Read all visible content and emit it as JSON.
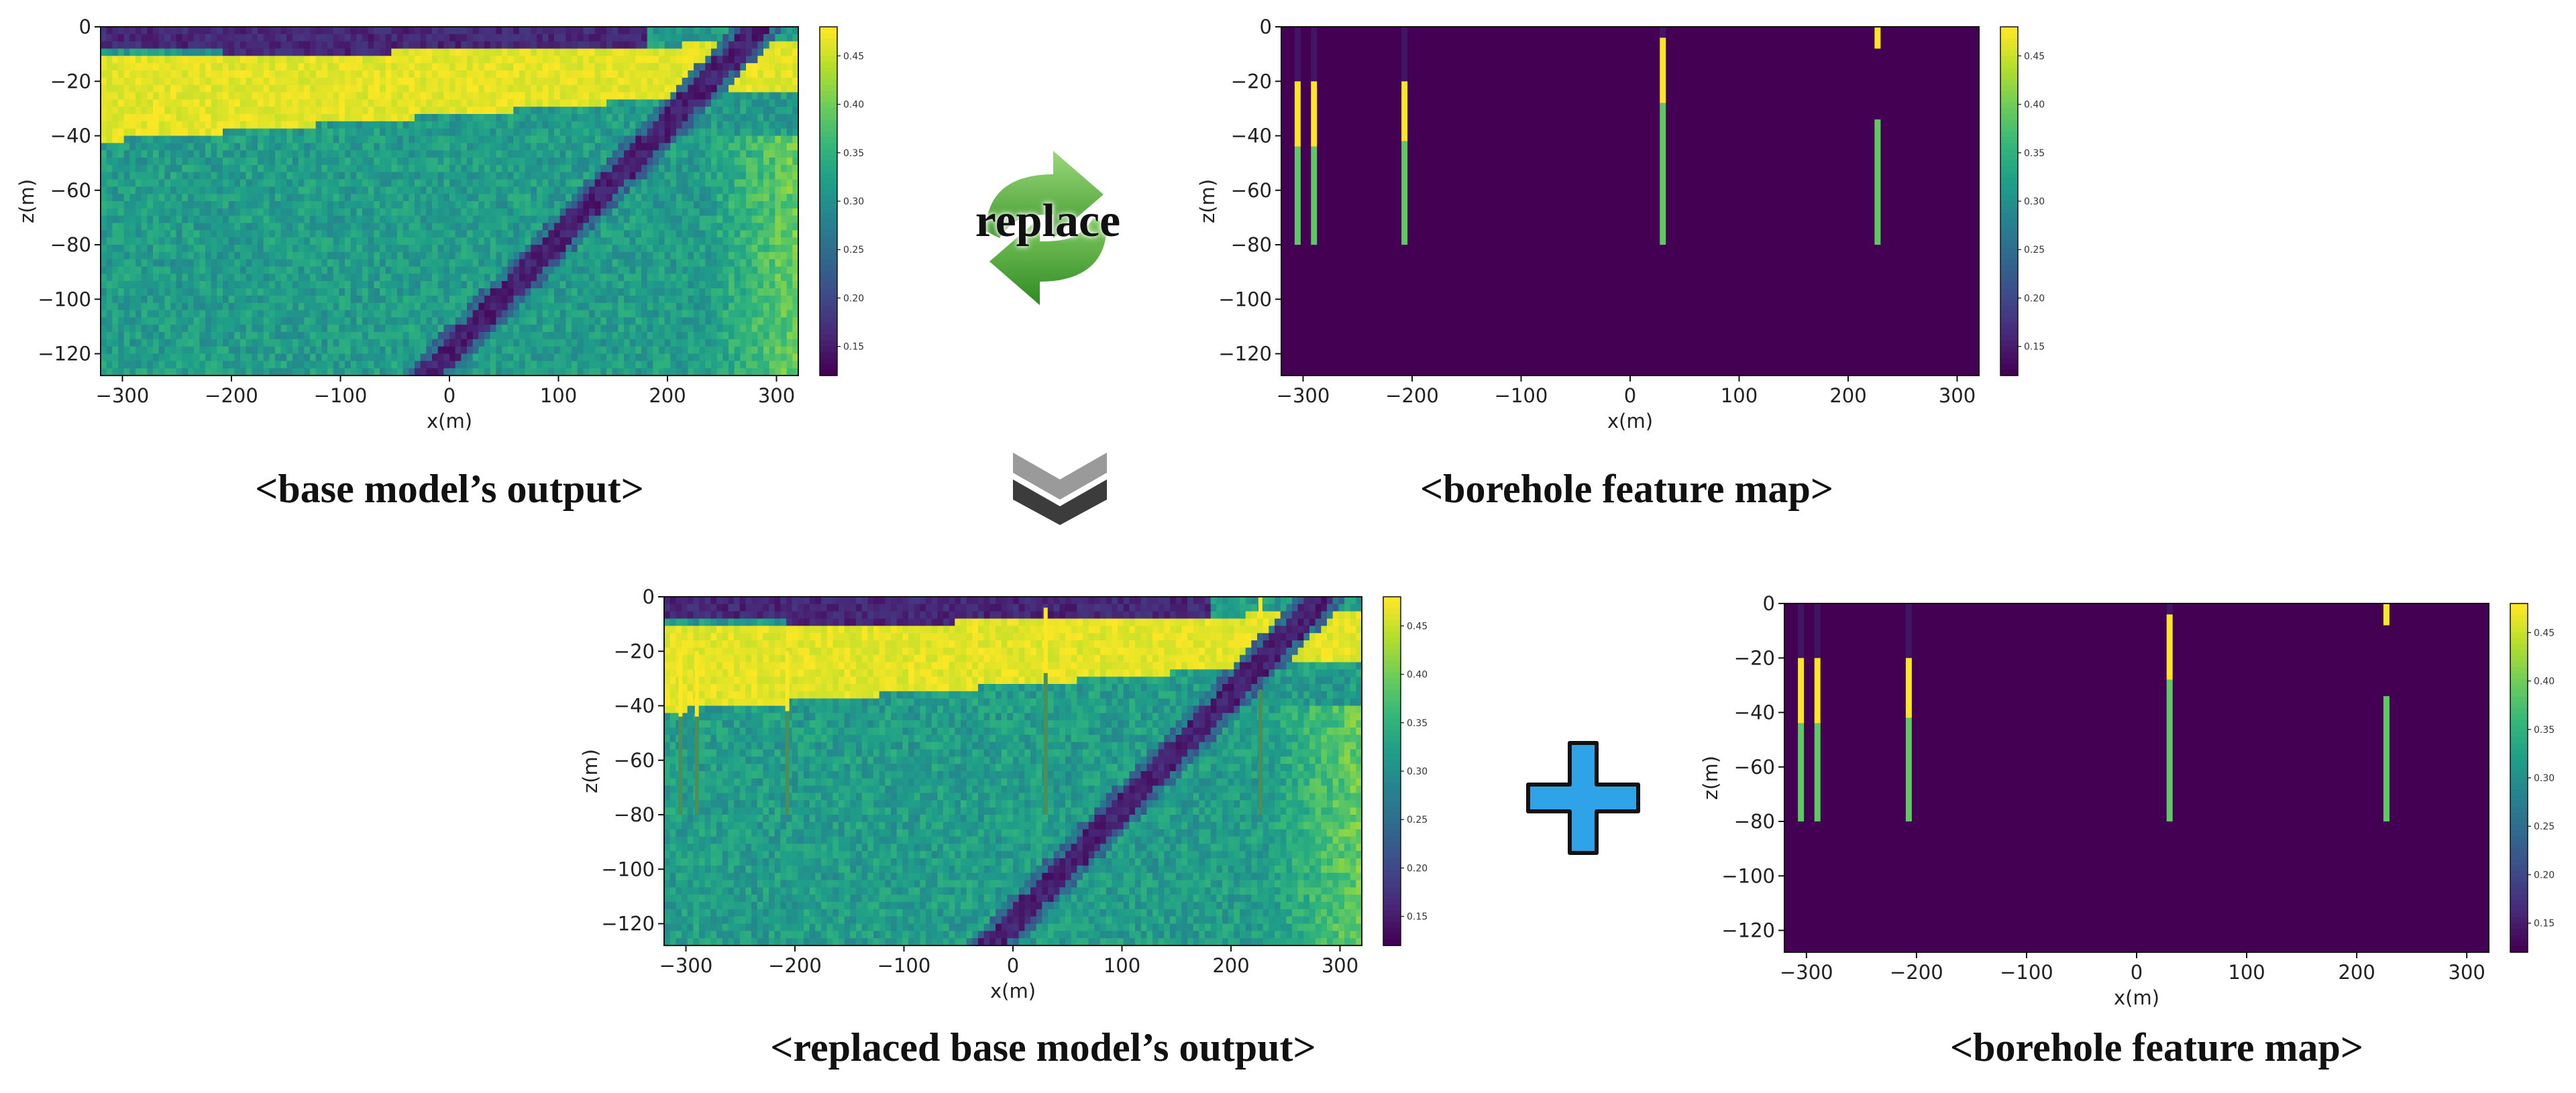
{
  "captions": {
    "top_left": "<base model’s output>",
    "top_right": "<borehole feature map>",
    "bottom_left": "<replaced base model’s output>",
    "bottom_right": "<borehole feature map>"
  },
  "replace_label": "replace",
  "icons": {
    "replace": "recycle-arrows-icon",
    "down": "double-chevron-down-icon",
    "plus": "plus-icon"
  },
  "axes": {
    "xlabel": "x(m)",
    "ylabel": "z(m)",
    "xticks": [
      "−300",
      "−200",
      "−100",
      "0",
      "100",
      "200",
      "300"
    ],
    "yticks": [
      "0",
      "−20",
      "−40",
      "−60",
      "−80",
      "−100",
      "−120"
    ],
    "cbticks": [
      "0.45",
      "0.40",
      "0.35",
      "0.30",
      "0.25",
      "0.20",
      "0.15"
    ]
  },
  "colors": {
    "background": "#440154",
    "yellow": "#fde725",
    "green": "#5ec962",
    "teal": "#21918c",
    "blue_icon": "#2ea3e8",
    "green_icon": "#4caf3a"
  },
  "chart_data": [
    {
      "type": "heatmap",
      "panel": "base model's output",
      "xlabel": "x(m)",
      "ylabel": "z(m)",
      "xlim": [
        -320,
        320
      ],
      "ylim": [
        -128,
        0
      ],
      "colorbar": [
        0.12,
        0.48
      ],
      "fault": {
        "from": [
          -20,
          -128
        ],
        "to": [
          285,
          0
        ]
      }
    },
    {
      "type": "heatmap",
      "panel": "borehole feature map",
      "xlabel": "x(m)",
      "ylabel": "z(m)",
      "xlim": [
        -320,
        320
      ],
      "ylim": [
        -128,
        0
      ],
      "colorbar": [
        0.12,
        0.48
      ],
      "boreholes": [
        {
          "x": -305,
          "yellow": [
            -20,
            -44
          ],
          "green": [
            -44,
            -80
          ]
        },
        {
          "x": -290,
          "yellow": [
            -20,
            -44
          ],
          "green": [
            -44,
            -80
          ]
        },
        {
          "x": -207,
          "yellow": [
            -20,
            -42
          ],
          "green": [
            -42,
            -80
          ]
        },
        {
          "x": 30,
          "yellow": [
            -4,
            -28
          ],
          "green": [
            -28,
            -80
          ]
        },
        {
          "x": 227,
          "yellow": [
            0,
            -8
          ],
          "green": [
            -34,
            -80
          ]
        }
      ]
    },
    {
      "type": "heatmap",
      "panel": "replaced base model's output",
      "xlabel": "x(m)",
      "ylabel": "z(m)",
      "xlim": [
        -320,
        320
      ],
      "ylim": [
        -128,
        0
      ],
      "colorbar": [
        0.12,
        0.48
      ]
    },
    {
      "type": "heatmap",
      "panel": "borehole feature map (copy)",
      "xlabel": "x(m)",
      "ylabel": "z(m)",
      "xlim": [
        -320,
        320
      ],
      "ylim": [
        -128,
        0
      ],
      "colorbar": [
        0.12,
        0.48
      ]
    }
  ]
}
